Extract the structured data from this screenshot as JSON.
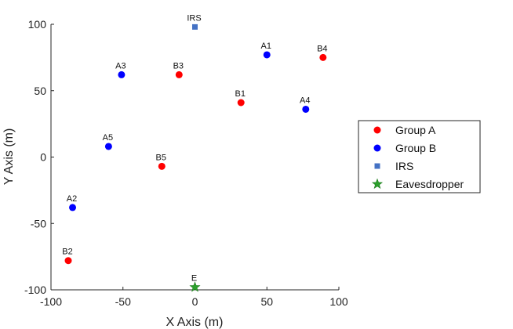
{
  "chart_data": {
    "type": "scatter",
    "title": "",
    "xlabel": "X Axis (m)",
    "ylabel": "Y Axis (m)",
    "xlim": [
      -100,
      100
    ],
    "ylim": [
      -100,
      100
    ],
    "xticks": [
      -100,
      -50,
      0,
      50,
      100
    ],
    "yticks": [
      -100,
      -50,
      0,
      50,
      100
    ],
    "xtick_labels": [
      "-100",
      "-50",
      "0",
      "50",
      "100"
    ],
    "ytick_labels": [
      "-100",
      "-50",
      "0",
      "50",
      "100"
    ],
    "grid": false,
    "legend_position": "right",
    "series": [
      {
        "name": "Group A",
        "marker": "dot",
        "color": "#ff0000",
        "points": [
          {
            "label": "B1",
            "x": 32,
            "y": 41
          },
          {
            "label": "B2",
            "x": -88,
            "y": -78
          },
          {
            "label": "B3",
            "x": -11,
            "y": 62
          },
          {
            "label": "B4",
            "x": 89,
            "y": 75
          },
          {
            "label": "B5",
            "x": -23,
            "y": -7
          }
        ]
      },
      {
        "name": "Group B",
        "marker": "dot",
        "color": "#0000ff",
        "points": [
          {
            "label": "A1",
            "x": 50,
            "y": 77
          },
          {
            "label": "A2",
            "x": -85,
            "y": -38
          },
          {
            "label": "A3",
            "x": -51,
            "y": 62
          },
          {
            "label": "A4",
            "x": 77,
            "y": 36
          },
          {
            "label": "A5",
            "x": -60,
            "y": 8
          }
        ]
      },
      {
        "name": "IRS",
        "marker": "square",
        "color": "#4472c4",
        "points": [
          {
            "label": "IRS",
            "x": 0,
            "y": 98
          }
        ]
      },
      {
        "name": "Eavesdropper",
        "marker": "star",
        "color": "#2ca02c",
        "points": [
          {
            "label": "E",
            "x": 0,
            "y": -98
          }
        ]
      }
    ]
  }
}
